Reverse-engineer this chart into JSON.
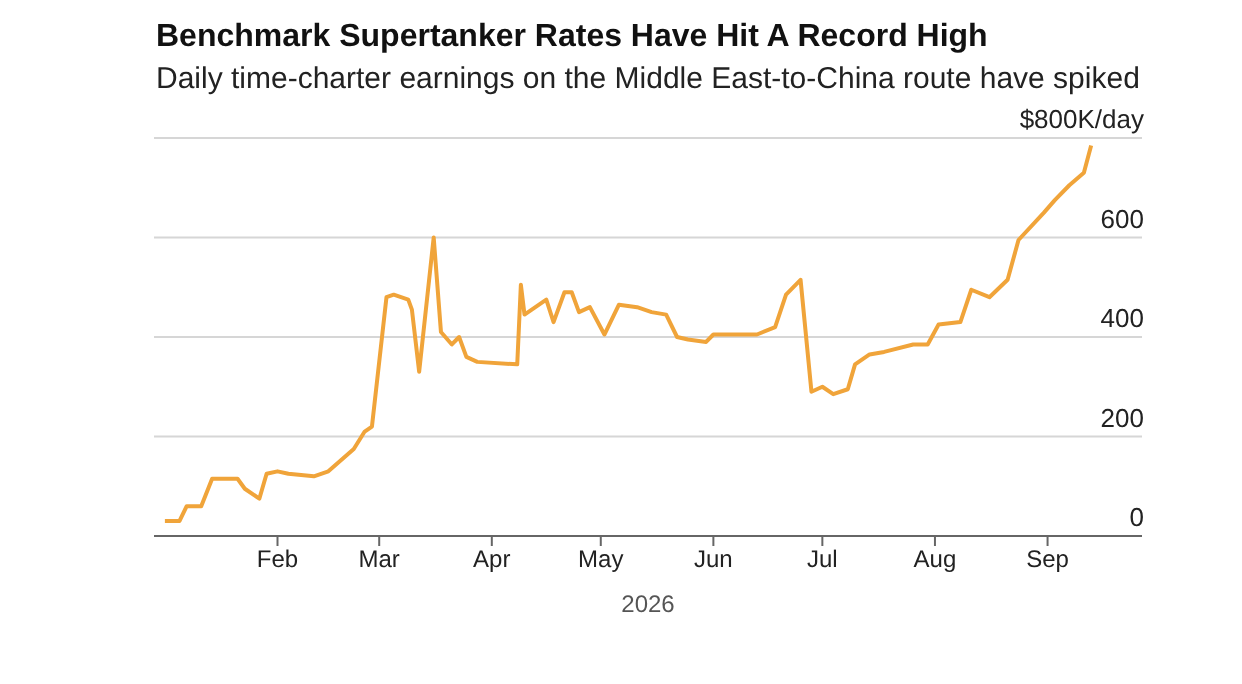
{
  "chart_data": {
    "type": "line",
    "title": "Benchmark Supertanker Rates Have Hit A Record High",
    "subtitle": "Daily time-charter earnings on the Middle East-to-China route have spiked",
    "xlabel": "2026",
    "x": [
      "2026-01-01",
      "2026-01-05",
      "2026-01-07",
      "2026-01-11",
      "2026-01-14",
      "2026-01-21",
      "2026-01-23",
      "2026-01-27",
      "2026-01-29",
      "2026-02-01",
      "2026-02-04",
      "2026-02-11",
      "2026-02-15",
      "2026-02-22",
      "2026-02-25",
      "2026-02-27",
      "2026-03-03",
      "2026-03-05",
      "2026-03-09",
      "2026-03-10",
      "2026-03-12",
      "2026-03-16",
      "2026-03-18",
      "2026-03-21",
      "2026-03-23",
      "2026-03-25",
      "2026-03-28",
      "2026-04-08",
      "2026-04-09",
      "2026-04-10",
      "2026-04-16",
      "2026-04-18",
      "2026-04-21",
      "2026-04-23",
      "2026-04-25",
      "2026-04-28",
      "2026-05-02",
      "2026-05-06",
      "2026-05-11",
      "2026-05-15",
      "2026-05-19",
      "2026-05-22",
      "2026-05-25",
      "2026-05-30",
      "2026-06-01",
      "2026-06-05",
      "2026-06-13",
      "2026-06-18",
      "2026-06-21",
      "2026-06-25",
      "2026-06-28",
      "2026-07-01",
      "2026-07-04",
      "2026-07-08",
      "2026-07-10",
      "2026-07-14",
      "2026-07-18",
      "2026-07-26",
      "2026-07-30",
      "2026-08-02",
      "2026-08-08",
      "2026-08-11",
      "2026-08-16",
      "2026-08-21",
      "2026-08-24",
      "2026-08-31",
      "2026-09-03",
      "2026-09-07",
      "2026-09-11",
      "2026-09-13"
    ],
    "series": [
      {
        "color": "#f0a43a",
        "values": [
          30,
          30,
          60,
          60,
          115,
          115,
          95,
          75,
          125,
          130,
          125,
          120,
          130,
          175,
          210,
          220,
          480,
          485,
          475,
          455,
          330,
          600,
          410,
          385,
          400,
          360,
          350,
          345,
          505,
          445,
          475,
          430,
          490,
          490,
          450,
          460,
          405,
          465,
          460,
          450,
          445,
          400,
          395,
          390,
          405,
          405,
          405,
          420,
          485,
          515,
          290,
          300,
          285,
          295,
          345,
          365,
          370,
          385,
          385,
          425,
          430,
          495,
          480,
          515,
          595,
          650,
          675,
          705,
          730,
          785
        ]
      }
    ],
    "xlim": [
      "2025-12-29",
      "2026-09-27"
    ],
    "xticks": [
      {
        "value": "2026-02-01",
        "label": "Feb"
      },
      {
        "value": "2026-03-01",
        "label": "Mar"
      },
      {
        "value": "2026-04-01",
        "label": "Apr"
      },
      {
        "value": "2026-05-01",
        "label": "May"
      },
      {
        "value": "2026-06-01",
        "label": "Jun"
      },
      {
        "value": "2026-07-01",
        "label": "Jul"
      },
      {
        "value": "2026-08-01",
        "label": "Aug"
      },
      {
        "value": "2026-09-01",
        "label": "Sep"
      }
    ],
    "ylim": [
      0,
      800
    ],
    "yticks": [
      0,
      200,
      400,
      600,
      {
        "value": 800,
        "label": "$800K/day"
      }
    ],
    "grid": "y",
    "legend": false,
    "marker": "none",
    "line_style": "solid"
  }
}
